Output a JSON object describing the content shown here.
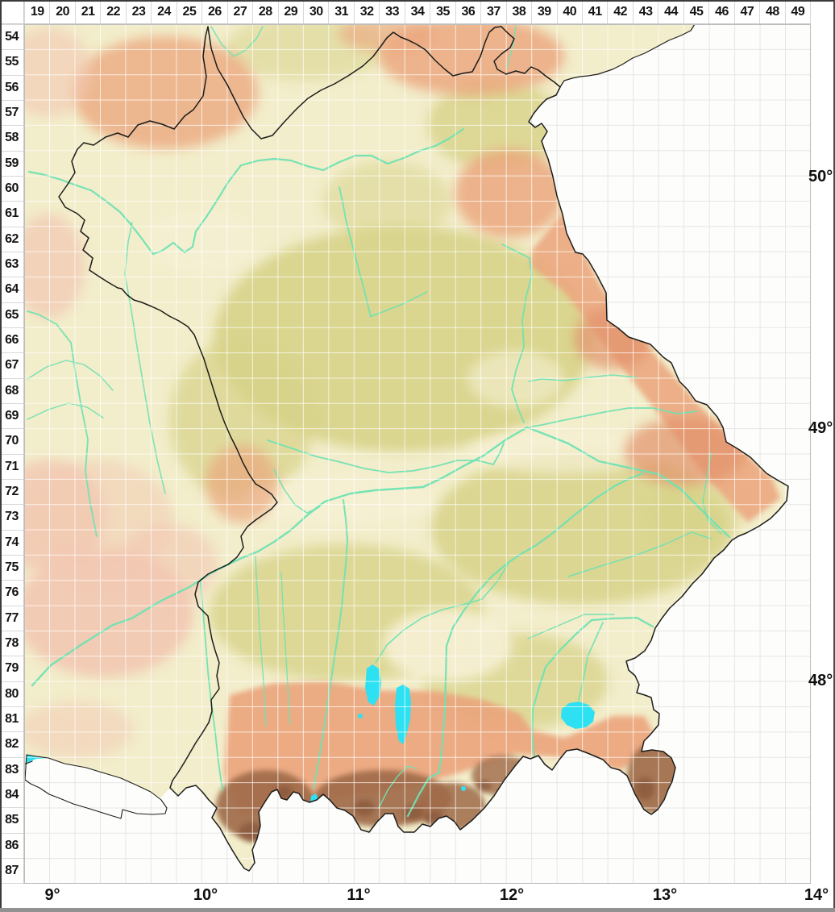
{
  "map": {
    "description": "Topographic grid map of Bavaria (MTB quadrant grid)",
    "grid": {
      "column_labels": [
        "19",
        "20",
        "21",
        "22",
        "23",
        "24",
        "25",
        "26",
        "27",
        "28",
        "29",
        "30",
        "31",
        "32",
        "33",
        "34",
        "35",
        "36",
        "37",
        "38",
        "39",
        "40",
        "41",
        "42",
        "43",
        "44",
        "45",
        "46",
        "47",
        "48",
        "49"
      ],
      "row_labels": [
        "54",
        "55",
        "56",
        "57",
        "58",
        "59",
        "60",
        "61",
        "62",
        "63",
        "64",
        "65",
        "66",
        "67",
        "68",
        "69",
        "70",
        "71",
        "72",
        "73",
        "74",
        "75",
        "76",
        "77",
        "78",
        "79",
        "80",
        "81",
        "82",
        "83",
        "84",
        "85",
        "86",
        "87"
      ],
      "longitude_labels": [
        "9°",
        "10°",
        "11°",
        "12°",
        "13°",
        "14°"
      ],
      "latitude_labels": [
        "50°",
        "49°",
        "48°"
      ]
    },
    "palette": {
      "outside_region": "#fdfdfb",
      "lowland": "#f2edca",
      "valley_cream": "#f7f1d6",
      "hills_green": "#d8d389",
      "upland_salmon": "#eba47c",
      "upland_salmon_dark": "#e2926b",
      "foreland_pink": "#f3c8b2",
      "mountains_brown": "#9f6a48",
      "alpine_dark_brown": "#7b4b31",
      "water": "#2ee1f2",
      "river": "#6fe2b2",
      "boundary": "#1d1d1b",
      "grid_line_on_land": "rgba(255,255,255,0.72)",
      "grid_line_on_white": "#e6e6e6"
    }
  }
}
